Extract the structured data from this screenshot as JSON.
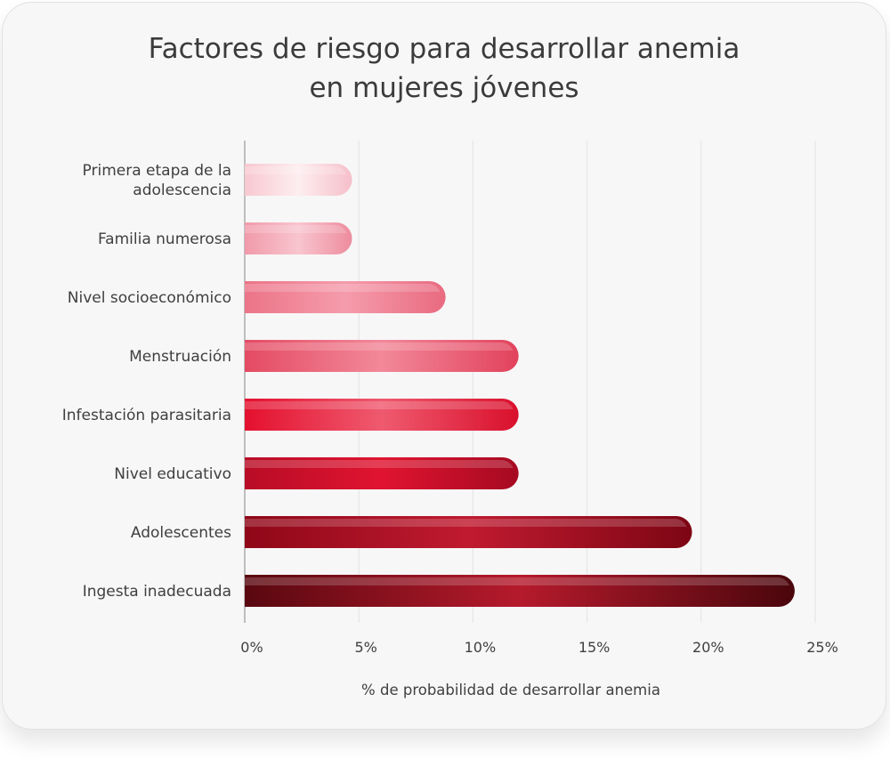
{
  "chart_data": {
    "type": "bar",
    "orientation": "horizontal",
    "title_line1": "Factores de riesgo para desarrollar anemia",
    "title_line2": "en mujeres jóvenes",
    "xlabel": "% de probabilidad de desarrollar anemia",
    "ylabel": "",
    "xlim": [
      0,
      25
    ],
    "xticks": [
      0,
      5,
      10,
      15,
      20,
      25
    ],
    "xtick_labels": [
      "0%",
      "5%",
      "10%",
      "15%",
      "20%",
      "25%"
    ],
    "grid": true,
    "categories": [
      [
        "Primera etapa de la",
        "adolescencia"
      ],
      [
        "Familia numerosa"
      ],
      [
        "Nivel socioeconómico"
      ],
      [
        "Menstruación"
      ],
      [
        "Infestación parasitaria"
      ],
      [
        "Nivel educativo"
      ],
      [
        "Adolescentes"
      ],
      [
        "Ingesta inadecuada"
      ]
    ],
    "values": [
      4.7,
      4.7,
      8.8,
      12,
      12,
      12,
      19.6,
      24.1
    ],
    "bar_colors": [
      [
        "#f8c8d0",
        "#fdeef0",
        "#f6bfc9"
      ],
      [
        "#f19aaa",
        "#f8c5ce",
        "#ee8c9e"
      ],
      [
        "#ec7488",
        "#f59cac",
        "#e96a80"
      ],
      [
        "#e44b63",
        "#f28899",
        "#e2425c"
      ],
      [
        "#e4102e",
        "#ef5a6f",
        "#d9102c"
      ],
      [
        "#b80c26",
        "#e01430",
        "#a60a22"
      ],
      [
        "#8f0718",
        "#c01a30",
        "#7d0614"
      ],
      [
        "#5a0810",
        "#b51a2c",
        "#4a060c"
      ]
    ]
  }
}
